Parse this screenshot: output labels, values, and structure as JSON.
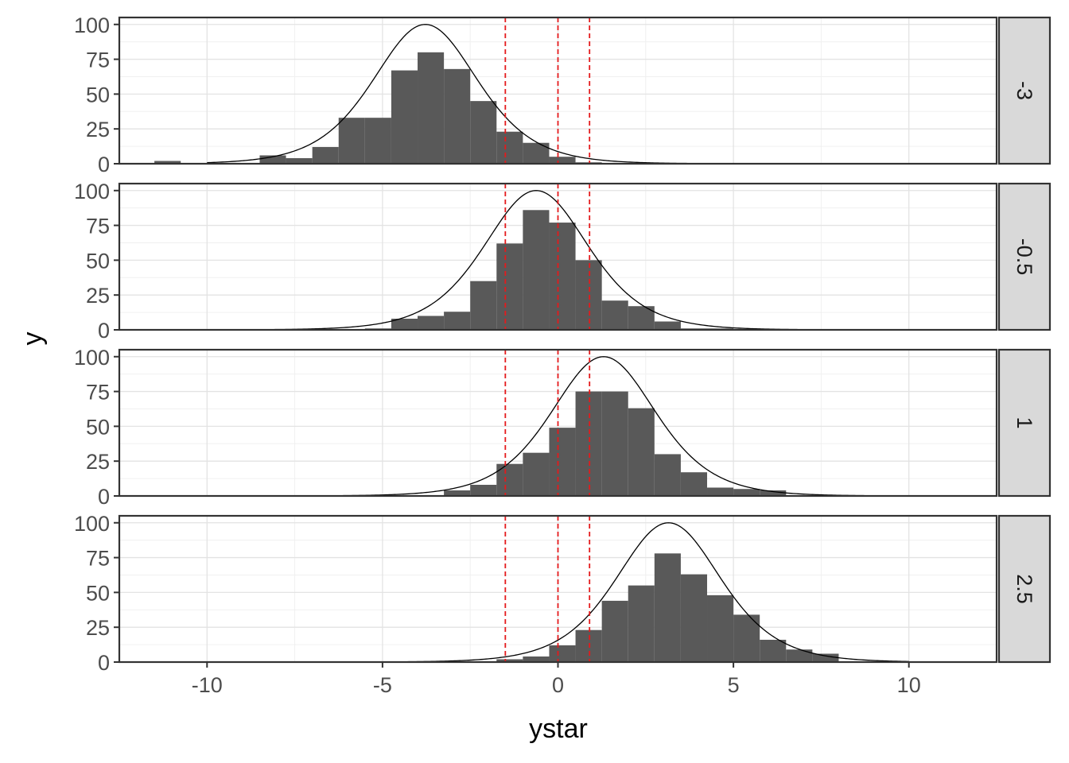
{
  "chart_data": {
    "type": "bar",
    "title": "",
    "xlabel": "ystar",
    "ylabel": "y",
    "xlim": [
      -12.5,
      12.5
    ],
    "ylim": [
      0,
      105
    ],
    "x_ticks": [
      -10,
      -5,
      0,
      5,
      10
    ],
    "x_tick_labels": [
      "-10",
      "-5",
      "0",
      "5",
      "10"
    ],
    "y_ticks": [
      0,
      25,
      50,
      75,
      100
    ],
    "y_tick_labels": [
      "0",
      "25",
      "50",
      "75",
      "100"
    ],
    "grid": true,
    "bin_width": 0.75,
    "vlines": [
      -1.5,
      0,
      0.9
    ],
    "vline_color": "#e41a1c",
    "bar_color": "#595959",
    "curve": {
      "x_range": [
        -10,
        10
      ],
      "peak": 100,
      "scale": 1.0
    },
    "panels": [
      {
        "label": "-3",
        "curve_center": -3.78,
        "bins": [
          {
            "x0": -11.5,
            "count": 2
          },
          {
            "x0": -10.75,
            "count": 0
          },
          {
            "x0": -10.0,
            "count": 0
          },
          {
            "x0": -9.25,
            "count": 0
          },
          {
            "x0": -8.5,
            "count": 6
          },
          {
            "x0": -7.75,
            "count": 4
          },
          {
            "x0": -7.0,
            "count": 12
          },
          {
            "x0": -6.25,
            "count": 33
          },
          {
            "x0": -5.5,
            "count": 33
          },
          {
            "x0": -4.75,
            "count": 67
          },
          {
            "x0": -4.0,
            "count": 80
          },
          {
            "x0": -3.25,
            "count": 68
          },
          {
            "x0": -2.5,
            "count": 45
          },
          {
            "x0": -1.75,
            "count": 23
          },
          {
            "x0": -1.0,
            "count": 15
          },
          {
            "x0": -0.25,
            "count": 5
          },
          {
            "x0": 0.5,
            "count": 1
          }
        ]
      },
      {
        "label": "-0.5",
        "curve_center": -0.62,
        "bins": [
          {
            "x0": -5.5,
            "count": 1
          },
          {
            "x0": -4.75,
            "count": 8
          },
          {
            "x0": -4.0,
            "count": 10
          },
          {
            "x0": -3.25,
            "count": 13
          },
          {
            "x0": -2.5,
            "count": 35
          },
          {
            "x0": -1.75,
            "count": 62
          },
          {
            "x0": -1.0,
            "count": 86
          },
          {
            "x0": -0.25,
            "count": 77
          },
          {
            "x0": 0.5,
            "count": 50
          },
          {
            "x0": 1.25,
            "count": 21
          },
          {
            "x0": 2.0,
            "count": 17
          },
          {
            "x0": 2.75,
            "count": 6
          },
          {
            "x0": 3.5,
            "count": 1
          },
          {
            "x0": 4.25,
            "count": 1
          }
        ]
      },
      {
        "label": "1",
        "curve_center": 1.3,
        "bins": [
          {
            "x0": -3.25,
            "count": 4
          },
          {
            "x0": -2.5,
            "count": 8
          },
          {
            "x0": -1.75,
            "count": 23
          },
          {
            "x0": -1.0,
            "count": 31
          },
          {
            "x0": -0.25,
            "count": 49
          },
          {
            "x0": 0.5,
            "count": 75
          },
          {
            "x0": 1.25,
            "count": 75
          },
          {
            "x0": 2.0,
            "count": 63
          },
          {
            "x0": 2.75,
            "count": 30
          },
          {
            "x0": 3.5,
            "count": 17
          },
          {
            "x0": 4.25,
            "count": 6
          },
          {
            "x0": 5.0,
            "count": 5
          },
          {
            "x0": 5.75,
            "count": 4
          }
        ]
      },
      {
        "label": "2.5",
        "curve_center": 3.15,
        "bins": [
          {
            "x0": -1.75,
            "count": 2
          },
          {
            "x0": -1.0,
            "count": 4
          },
          {
            "x0": -0.25,
            "count": 12
          },
          {
            "x0": 0.5,
            "count": 23
          },
          {
            "x0": 1.25,
            "count": 44
          },
          {
            "x0": 2.0,
            "count": 55
          },
          {
            "x0": 2.75,
            "count": 78
          },
          {
            "x0": 3.5,
            "count": 63
          },
          {
            "x0": 4.25,
            "count": 48
          },
          {
            "x0": 5.0,
            "count": 34
          },
          {
            "x0": 5.75,
            "count": 16
          },
          {
            "x0": 6.5,
            "count": 9
          },
          {
            "x0": 7.25,
            "count": 6
          }
        ]
      }
    ]
  }
}
